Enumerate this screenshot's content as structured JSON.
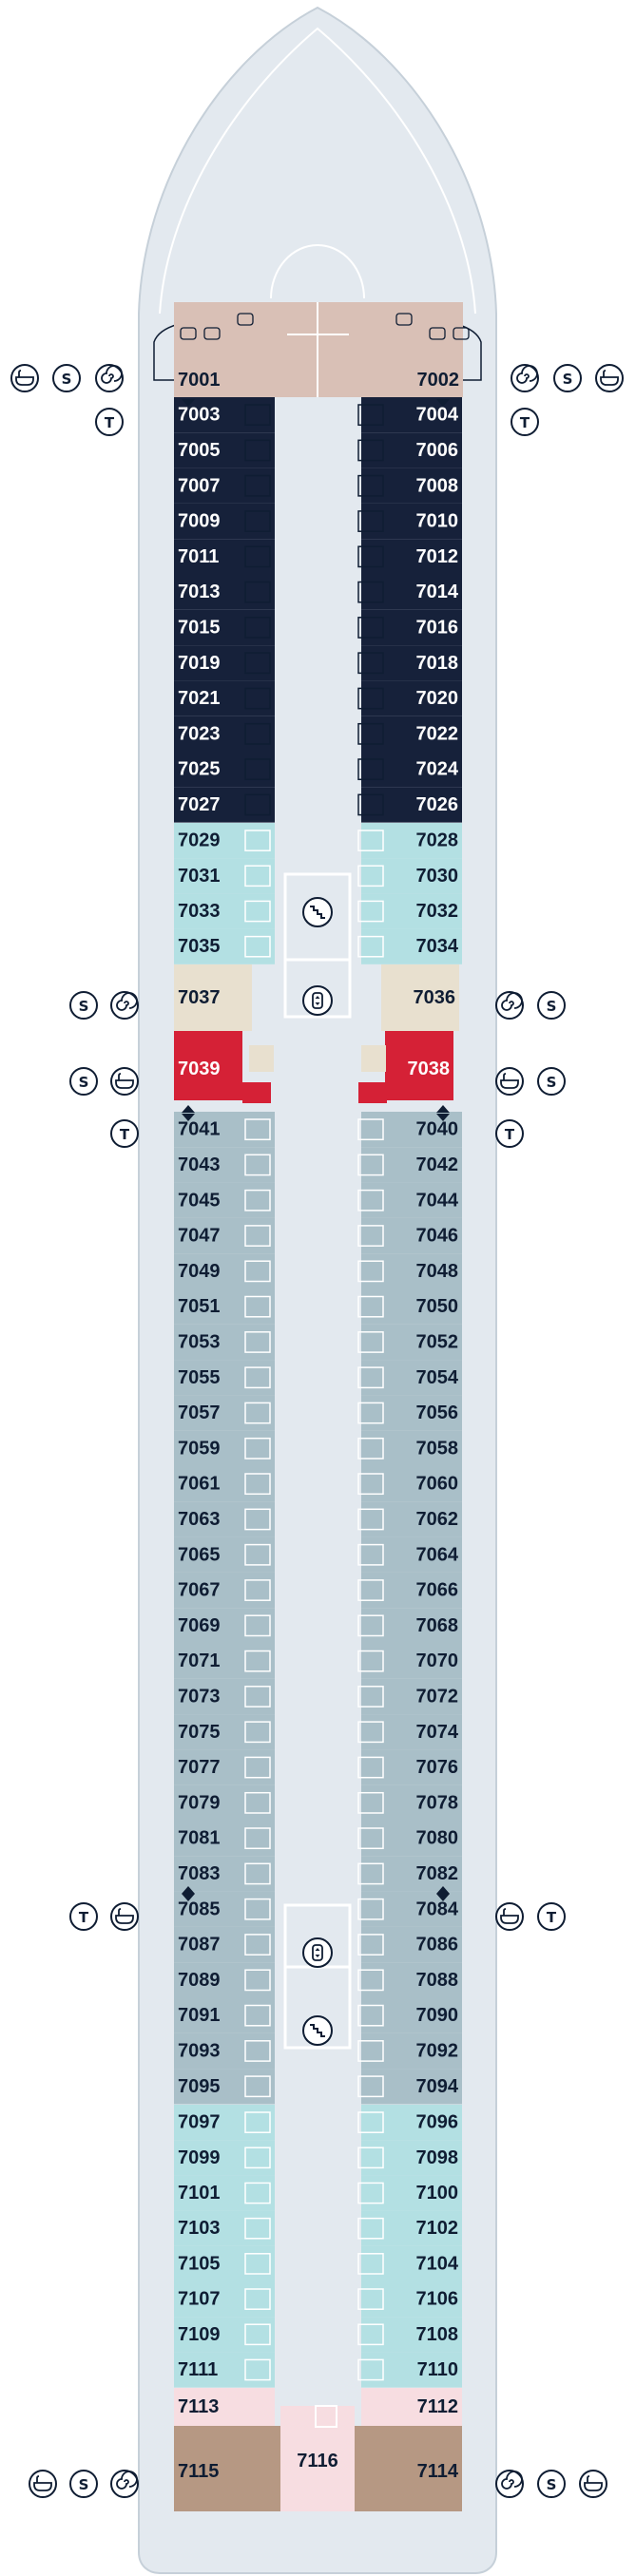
{
  "deck": {
    "left_cabins": [
      {
        "number": "7001",
        "type": "owner"
      },
      {
        "number": "7003",
        "type": "navy"
      },
      {
        "number": "7005",
        "type": "navy"
      },
      {
        "number": "7007",
        "type": "navy"
      },
      {
        "number": "7009",
        "type": "navy"
      },
      {
        "number": "7011",
        "type": "navy"
      },
      {
        "number": "7013",
        "type": "navy"
      },
      {
        "number": "7015",
        "type": "navy"
      },
      {
        "number": "7019",
        "type": "navy"
      },
      {
        "number": "7021",
        "type": "navy"
      },
      {
        "number": "7023",
        "type": "navy"
      },
      {
        "number": "7025",
        "type": "navy"
      },
      {
        "number": "7027",
        "type": "navy"
      },
      {
        "number": "7029",
        "type": "aqua"
      },
      {
        "number": "7031",
        "type": "aqua"
      },
      {
        "number": "7033",
        "type": "aqua"
      },
      {
        "number": "7035",
        "type": "aqua"
      },
      {
        "number": "7037",
        "type": "beige"
      },
      {
        "number": "7039",
        "type": "red"
      },
      {
        "number": "7041",
        "type": "steel"
      },
      {
        "number": "7043",
        "type": "steel"
      },
      {
        "number": "7045",
        "type": "steel"
      },
      {
        "number": "7047",
        "type": "steel"
      },
      {
        "number": "7049",
        "type": "steel"
      },
      {
        "number": "7051",
        "type": "steel"
      },
      {
        "number": "7053",
        "type": "steel"
      },
      {
        "number": "7055",
        "type": "steel"
      },
      {
        "number": "7057",
        "type": "steel"
      },
      {
        "number": "7059",
        "type": "steel"
      },
      {
        "number": "7061",
        "type": "steel"
      },
      {
        "number": "7063",
        "type": "steel"
      },
      {
        "number": "7065",
        "type": "steel"
      },
      {
        "number": "7067",
        "type": "steel"
      },
      {
        "number": "7069",
        "type": "steel"
      },
      {
        "number": "7071",
        "type": "steel"
      },
      {
        "number": "7073",
        "type": "steel"
      },
      {
        "number": "7075",
        "type": "steel"
      },
      {
        "number": "7077",
        "type": "steel"
      },
      {
        "number": "7079",
        "type": "steel"
      },
      {
        "number": "7081",
        "type": "steel"
      },
      {
        "number": "7083",
        "type": "steel"
      },
      {
        "number": "7085",
        "type": "steel"
      },
      {
        "number": "7087",
        "type": "steel"
      },
      {
        "number": "7089",
        "type": "steel"
      },
      {
        "number": "7091",
        "type": "steel"
      },
      {
        "number": "7093",
        "type": "steel"
      },
      {
        "number": "7095",
        "type": "steel"
      },
      {
        "number": "7097",
        "type": "aqua"
      },
      {
        "number": "7099",
        "type": "aqua"
      },
      {
        "number": "7101",
        "type": "aqua"
      },
      {
        "number": "7103",
        "type": "aqua"
      },
      {
        "number": "7105",
        "type": "aqua"
      },
      {
        "number": "7107",
        "type": "aqua"
      },
      {
        "number": "7109",
        "type": "aqua"
      },
      {
        "number": "7111",
        "type": "aqua"
      },
      {
        "number": "7113",
        "type": "pink"
      },
      {
        "number": "7115",
        "type": "brown"
      }
    ],
    "right_cabins": [
      {
        "number": "7002",
        "type": "owner"
      },
      {
        "number": "7004",
        "type": "navy"
      },
      {
        "number": "7006",
        "type": "navy"
      },
      {
        "number": "7008",
        "type": "navy"
      },
      {
        "number": "7010",
        "type": "navy"
      },
      {
        "number": "7012",
        "type": "navy"
      },
      {
        "number": "7014",
        "type": "navy"
      },
      {
        "number": "7016",
        "type": "navy"
      },
      {
        "number": "7018",
        "type": "navy"
      },
      {
        "number": "7020",
        "type": "navy"
      },
      {
        "number": "7022",
        "type": "navy"
      },
      {
        "number": "7024",
        "type": "navy"
      },
      {
        "number": "7026",
        "type": "navy"
      },
      {
        "number": "7028",
        "type": "aqua"
      },
      {
        "number": "7030",
        "type": "aqua"
      },
      {
        "number": "7032",
        "type": "aqua"
      },
      {
        "number": "7034",
        "type": "aqua"
      },
      {
        "number": "7036",
        "type": "beige"
      },
      {
        "number": "7038",
        "type": "red"
      },
      {
        "number": "7040",
        "type": "steel"
      },
      {
        "number": "7042",
        "type": "steel"
      },
      {
        "number": "7044",
        "type": "steel"
      },
      {
        "number": "7046",
        "type": "steel"
      },
      {
        "number": "7048",
        "type": "steel"
      },
      {
        "number": "7050",
        "type": "steel"
      },
      {
        "number": "7052",
        "type": "steel"
      },
      {
        "number": "7054",
        "type": "steel"
      },
      {
        "number": "7056",
        "type": "steel"
      },
      {
        "number": "7058",
        "type": "steel"
      },
      {
        "number": "7060",
        "type": "steel"
      },
      {
        "number": "7062",
        "type": "steel"
      },
      {
        "number": "7064",
        "type": "steel"
      },
      {
        "number": "7066",
        "type": "steel"
      },
      {
        "number": "7068",
        "type": "steel"
      },
      {
        "number": "7070",
        "type": "steel"
      },
      {
        "number": "7072",
        "type": "steel"
      },
      {
        "number": "7074",
        "type": "steel"
      },
      {
        "number": "7076",
        "type": "steel"
      },
      {
        "number": "7078",
        "type": "steel"
      },
      {
        "number": "7080",
        "type": "steel"
      },
      {
        "number": "7082",
        "type": "steel"
      },
      {
        "number": "7084",
        "type": "steel"
      },
      {
        "number": "7086",
        "type": "steel"
      },
      {
        "number": "7088",
        "type": "steel"
      },
      {
        "number": "7090",
        "type": "steel"
      },
      {
        "number": "7092",
        "type": "steel"
      },
      {
        "number": "7094",
        "type": "steel"
      },
      {
        "number": "7096",
        "type": "aqua"
      },
      {
        "number": "7098",
        "type": "aqua"
      },
      {
        "number": "7100",
        "type": "aqua"
      },
      {
        "number": "7102",
        "type": "aqua"
      },
      {
        "number": "7104",
        "type": "aqua"
      },
      {
        "number": "7106",
        "type": "aqua"
      },
      {
        "number": "7108",
        "type": "aqua"
      },
      {
        "number": "7110",
        "type": "aqua"
      },
      {
        "number": "7112",
        "type": "pink"
      },
      {
        "number": "7114",
        "type": "brown"
      }
    ],
    "center_cabin": {
      "number": "7116",
      "type": "pink"
    },
    "cabin_colors": {
      "owner": "#d9c0b6",
      "navy": "#16213a",
      "aqua": "#b3e0e3",
      "beige": "#e8e0cf",
      "red": "#d52136",
      "steel": "#a9bfc8",
      "pink": "#f7dde1",
      "brown": "#b69883"
    },
    "hull_color": "#e3e9ef",
    "ink_color": "#0f1d33",
    "icon_types": {
      "bath": "bathtub-icon",
      "sauna": "sauna-icon",
      "spa": "spa-spiral-icon",
      "tender": "tender-icon",
      "elevator": "elevator-icon",
      "stairs": "stairs-icon"
    },
    "icon_labels": {
      "sauna": "S",
      "tender": "T"
    }
  }
}
